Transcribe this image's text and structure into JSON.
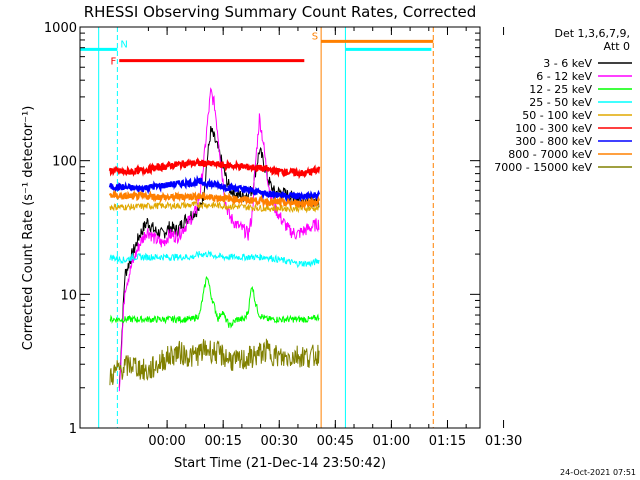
{
  "chart_data": {
    "type": "line",
    "title": "RHESSI Observing Summary Count Rates, Corrected",
    "xlabel": "Start Time (21-Dec-14 23:50:42)",
    "ylabel": "Corrected Count Rate (s⁻¹ detector⁻¹)",
    "ylog": true,
    "ylim": [
      1,
      1000
    ],
    "xlim_min": [
      -14,
      93
    ],
    "x_ticks": [
      {
        "min": 9.3,
        "label": "00:00"
      },
      {
        "min": 24.3,
        "label": "00:15"
      },
      {
        "min": 39.3,
        "label": "00:30"
      },
      {
        "min": 54.3,
        "label": "00:45"
      },
      {
        "min": 69.3,
        "label": "01:00"
      },
      {
        "min": 84.3,
        "label": "01:15"
      },
      {
        "min": 99.3,
        "label": "01:30"
      }
    ],
    "y_ticks": [
      {
        "value": 1,
        "label": "1"
      },
      {
        "value": 10,
        "label": "10"
      },
      {
        "value": 100,
        "label": "100"
      },
      {
        "value": 1000,
        "label": "1000"
      }
    ],
    "legend_title": [
      "Det 1,3,6,7,9,",
      "Att 0"
    ],
    "legend_position": "right",
    "footer_timestamp": "24-Oct-2021 07:51",
    "series": [
      {
        "name": "3 - 6 keV",
        "color": "#000000",
        "points": [
          [
            -3.5,
            2
          ],
          [
            -2,
            14
          ],
          [
            0,
            20
          ],
          [
            2,
            28
          ],
          [
            4,
            35
          ],
          [
            6,
            30
          ],
          [
            8,
            28
          ],
          [
            10,
            32
          ],
          [
            12,
            30
          ],
          [
            14,
            36
          ],
          [
            16,
            40
          ],
          [
            18,
            44
          ],
          [
            19,
            55
          ],
          [
            20,
            100
          ],
          [
            21,
            170
          ],
          [
            22,
            145
          ],
          [
            23,
            120
          ],
          [
            24,
            95
          ],
          [
            25,
            75
          ],
          [
            26,
            62
          ],
          [
            28,
            55
          ],
          [
            30,
            55
          ],
          [
            32,
            60
          ],
          [
            33,
            85
          ],
          [
            34,
            120
          ],
          [
            35,
            100
          ],
          [
            36,
            78
          ],
          [
            37,
            65
          ],
          [
            38,
            58
          ],
          [
            40,
            58
          ],
          [
            42,
            54
          ],
          [
            44,
            52
          ],
          [
            46,
            50
          ],
          [
            48,
            50
          ],
          [
            50,
            50
          ]
        ]
      },
      {
        "name": "6 - 12 keV",
        "color": "#ff00ff",
        "points": [
          [
            -3.5,
            2
          ],
          [
            -2,
            11
          ],
          [
            0,
            17
          ],
          [
            2,
            24
          ],
          [
            4,
            30
          ],
          [
            6,
            26
          ],
          [
            8,
            24
          ],
          [
            10,
            28
          ],
          [
            12,
            27
          ],
          [
            14,
            32
          ],
          [
            16,
            38
          ],
          [
            17,
            42
          ],
          [
            18,
            55
          ],
          [
            19,
            90
          ],
          [
            20,
            180
          ],
          [
            21,
            330
          ],
          [
            22,
            260
          ],
          [
            23,
            150
          ],
          [
            24,
            80
          ],
          [
            25,
            48
          ],
          [
            26,
            38
          ],
          [
            28,
            33
          ],
          [
            30,
            30
          ],
          [
            31,
            28
          ],
          [
            32,
            38
          ],
          [
            33,
            100
          ],
          [
            34,
            210
          ],
          [
            35,
            140
          ],
          [
            36,
            80
          ],
          [
            37,
            55
          ],
          [
            38,
            45
          ],
          [
            40,
            36
          ],
          [
            42,
            30
          ],
          [
            44,
            28
          ],
          [
            46,
            30
          ],
          [
            48,
            32
          ],
          [
            50,
            34
          ]
        ]
      },
      {
        "name": "12 - 25 keV",
        "color": "#00ff00",
        "points": [
          [
            -6,
            6.5
          ],
          [
            0,
            6.5
          ],
          [
            4,
            6.5
          ],
          [
            8,
            6.5
          ],
          [
            12,
            6.5
          ],
          [
            16,
            6.5
          ],
          [
            18,
            7
          ],
          [
            19,
            10
          ],
          [
            20,
            14
          ],
          [
            21,
            10
          ],
          [
            22,
            8
          ],
          [
            23,
            6.5
          ],
          [
            24,
            7.5
          ],
          [
            25,
            6.5
          ],
          [
            26,
            5.8
          ],
          [
            28,
            6.5
          ],
          [
            30,
            6.5
          ],
          [
            31,
            7.5
          ],
          [
            32,
            12
          ],
          [
            33,
            8.5
          ],
          [
            34,
            7
          ],
          [
            36,
            6.5
          ],
          [
            40,
            6.5
          ],
          [
            44,
            6.5
          ],
          [
            48,
            6.5
          ],
          [
            50,
            6.8
          ]
        ]
      },
      {
        "name": "25 - 50 keV",
        "color": "#00ffff",
        "points": [
          [
            -6,
            19
          ],
          [
            -2,
            18
          ],
          [
            0,
            19
          ],
          [
            4,
            19
          ],
          [
            8,
            19
          ],
          [
            12,
            19
          ],
          [
            16,
            19
          ],
          [
            18,
            20
          ],
          [
            20,
            20
          ],
          [
            24,
            19
          ],
          [
            28,
            19
          ],
          [
            32,
            19
          ],
          [
            36,
            19
          ],
          [
            40,
            18
          ],
          [
            44,
            17
          ],
          [
            48,
            17
          ],
          [
            50,
            18
          ]
        ]
      },
      {
        "name": "50 - 100 keV",
        "color": "#e0a800",
        "points": [
          [
            -6,
            45
          ],
          [
            0,
            45
          ],
          [
            6,
            46
          ],
          [
            12,
            46
          ],
          [
            18,
            47
          ],
          [
            24,
            46
          ],
          [
            30,
            45
          ],
          [
            36,
            44
          ],
          [
            42,
            44
          ],
          [
            48,
            44
          ],
          [
            50,
            44
          ]
        ]
      },
      {
        "name": "100 - 300 keV",
        "color": "#ff0000",
        "points": [
          [
            -6,
            85
          ],
          [
            -2,
            82
          ],
          [
            2,
            84
          ],
          [
            6,
            88
          ],
          [
            10,
            92
          ],
          [
            14,
            95
          ],
          [
            18,
            96
          ],
          [
            22,
            94
          ],
          [
            26,
            92
          ],
          [
            30,
            90
          ],
          [
            34,
            88
          ],
          [
            38,
            84
          ],
          [
            42,
            82
          ],
          [
            46,
            80
          ],
          [
            50,
            86
          ]
        ]
      },
      {
        "name": "300 - 800 keV",
        "color": "#0000ff",
        "points": [
          [
            -6,
            64
          ],
          [
            -2,
            63
          ],
          [
            2,
            62
          ],
          [
            6,
            64
          ],
          [
            10,
            66
          ],
          [
            14,
            68
          ],
          [
            18,
            69
          ],
          [
            22,
            66
          ],
          [
            26,
            63
          ],
          [
            30,
            61
          ],
          [
            34,
            58
          ],
          [
            38,
            56
          ],
          [
            42,
            55
          ],
          [
            46,
            54
          ],
          [
            50,
            55
          ]
        ]
      },
      {
        "name": "800 - 7000 keV",
        "color": "#ff8000",
        "points": [
          [
            -6,
            55
          ],
          [
            -2,
            54
          ],
          [
            2,
            54
          ],
          [
            6,
            54
          ],
          [
            10,
            53
          ],
          [
            14,
            54
          ],
          [
            18,
            54
          ],
          [
            22,
            53
          ],
          [
            26,
            52
          ],
          [
            30,
            51
          ],
          [
            34,
            50
          ],
          [
            38,
            49
          ],
          [
            42,
            48
          ],
          [
            46,
            48
          ],
          [
            50,
            49
          ]
        ]
      },
      {
        "name": "7000 - 15000 keV",
        "color": "#808000",
        "points": [
          [
            -6,
            2.4
          ],
          [
            -4,
            2.7
          ],
          [
            0,
            3
          ],
          [
            4,
            2.6
          ],
          [
            8,
            3.2
          ],
          [
            12,
            3.7
          ],
          [
            16,
            3.4
          ],
          [
            20,
            3.9
          ],
          [
            24,
            3.5
          ],
          [
            28,
            3.1
          ],
          [
            32,
            3.4
          ],
          [
            36,
            3.8
          ],
          [
            40,
            3.3
          ],
          [
            44,
            3.5
          ],
          [
            48,
            3.4
          ],
          [
            50,
            3.6
          ]
        ]
      }
    ],
    "annotations": [
      {
        "label": "N",
        "color": "#00ffff",
        "x0_min": -14,
        "x1_min": -4,
        "y": 680,
        "dashed_x_min": -4
      },
      {
        "label": "F",
        "color": "#ff0000",
        "x0_min": -3.5,
        "x1_min": 46,
        "y": 560
      },
      {
        "label": "S",
        "color": "#ff8000",
        "x0_min": 50.5,
        "x1_min": 80.5,
        "y": 780,
        "x_min": 50.5
      },
      {
        "label": "",
        "color": "#00ffff",
        "x0_min": 57,
        "x1_min": 80,
        "y": 680,
        "x_min": 57,
        "dashed_x_min": 80
      }
    ],
    "vertical_lines": [
      {
        "x_min": -14,
        "color": "#00ffff"
      },
      {
        "x_min": -9,
        "color": "#00ffff"
      },
      {
        "x_min": -4,
        "color": "#00ffff",
        "dashed": true
      },
      {
        "x_min": 50.5,
        "color": "#ff8000"
      },
      {
        "x_min": 57,
        "color": "#00ffff"
      },
      {
        "x_min": 80.5,
        "color": "#ff8000",
        "dashed": true
      }
    ]
  }
}
